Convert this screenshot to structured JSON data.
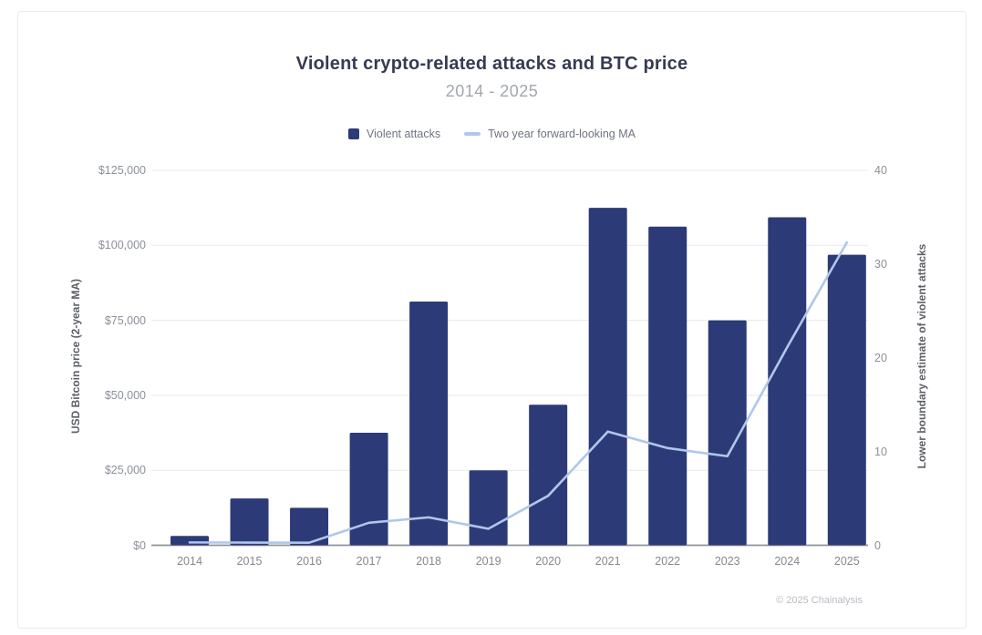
{
  "footer": "© 2025 Chainalysis",
  "chart_data": {
    "type": "bar",
    "title": "Violent crypto-related attacks and BTC price",
    "subtitle": "2014 - 2025",
    "categories": [
      "2014",
      "2015",
      "2016",
      "2017",
      "2018",
      "2019",
      "2020",
      "2021",
      "2022",
      "2023",
      "2024",
      "2025"
    ],
    "series": [
      {
        "name": "Violent attacks",
        "type": "bar",
        "yaxis": "right",
        "color": "#2d3a78",
        "values": [
          1,
          5,
          4,
          12,
          26,
          8,
          15,
          36,
          34,
          24,
          35,
          31
        ]
      },
      {
        "name": "Two year forward-looking MA",
        "type": "line",
        "yaxis": "left",
        "color": "#afc7ea",
        "values": [
          950,
          900,
          850,
          7500,
          9300,
          5500,
          16500,
          37900,
          32400,
          29700,
          66000,
          101000
        ]
      }
    ],
    "left_axis": {
      "title": "USD Bitcoin price (2-year MA)",
      "min": 0,
      "max": 125000,
      "ticks": [
        {
          "value": 0,
          "label": "$0"
        },
        {
          "value": 25000,
          "label": "$25,000"
        },
        {
          "value": 50000,
          "label": "$50,000"
        },
        {
          "value": 75000,
          "label": "$75,000"
        },
        {
          "value": 100000,
          "label": "$100,000"
        },
        {
          "value": 125000,
          "label": "$125,000"
        }
      ]
    },
    "right_axis": {
      "title": "Lower boundary estimate of violent attacks",
      "min": 0,
      "max": 40,
      "ticks": [
        {
          "value": 0,
          "label": "0"
        },
        {
          "value": 10,
          "label": "10"
        },
        {
          "value": 20,
          "label": "20"
        },
        {
          "value": 30,
          "label": "30"
        },
        {
          "value": 40,
          "label": "40"
        }
      ]
    },
    "grid": "horizontal",
    "legend_position": "top",
    "colors": {
      "bar": "#2d3a78",
      "line": "#afc7ea",
      "gridline": "#e7e9ed",
      "baseline": "#8e9399"
    }
  }
}
